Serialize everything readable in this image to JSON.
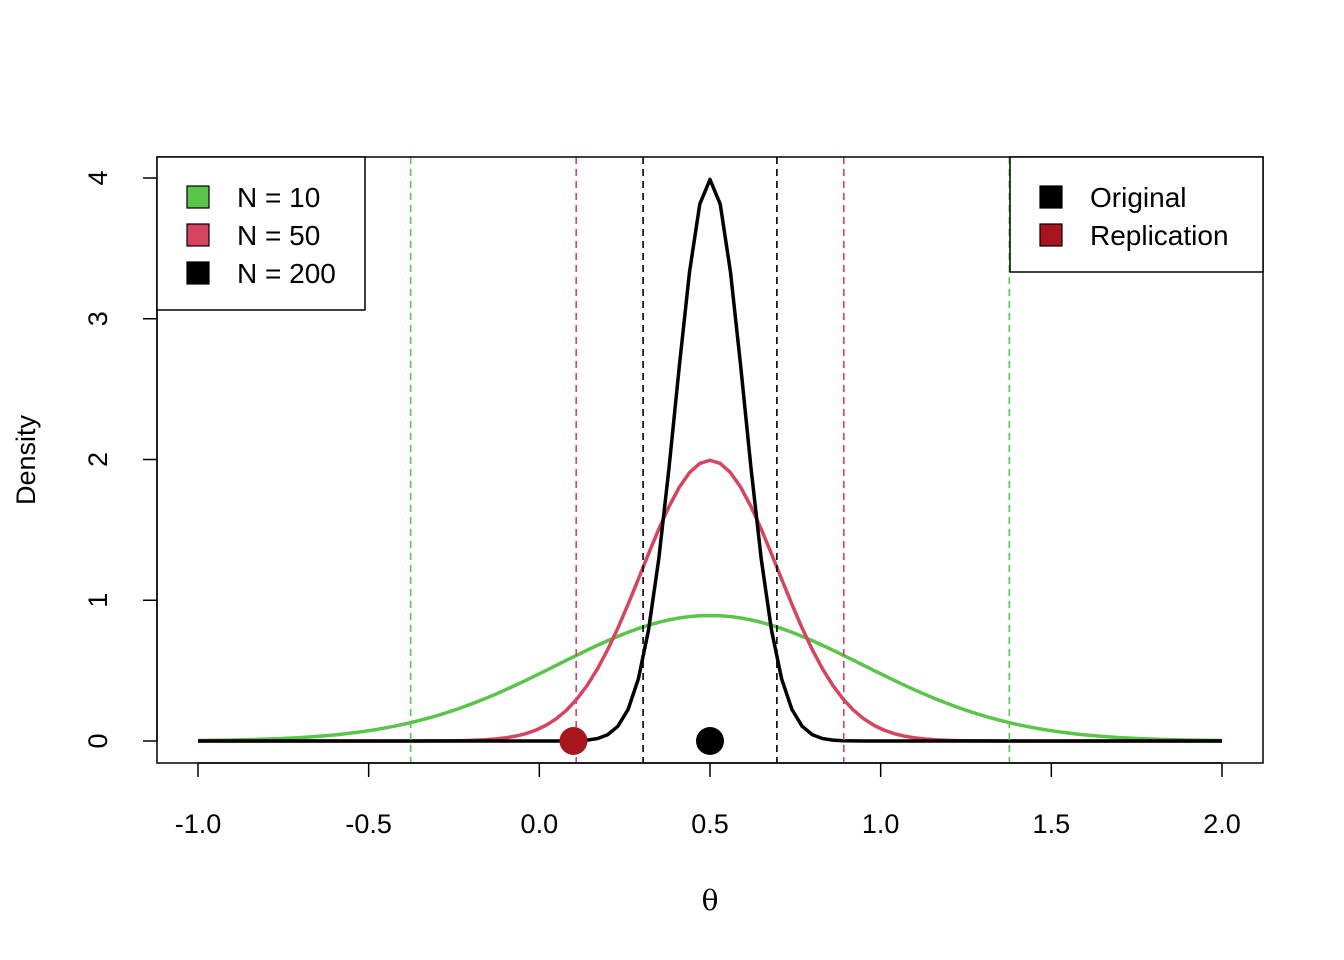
{
  "chart_data": {
    "type": "line",
    "xlabel": "θ",
    "ylabel": "Density",
    "xlim": [
      -1.0,
      2.0
    ],
    "ylim": [
      0,
      4
    ],
    "x_ticks": [
      "-1.0",
      "-0.5",
      "0.0",
      "0.5",
      "1.0",
      "1.5",
      "2.0"
    ],
    "y_ticks": [
      "0",
      "1",
      "2",
      "3",
      "4"
    ],
    "grid": false,
    "series": [
      {
        "name": "N = 10",
        "color": "#5BC44A",
        "distribution": "normal",
        "mean": 0.5,
        "sd": 0.4472,
        "interval": [
          -0.377,
          1.377
        ]
      },
      {
        "name": "N = 50",
        "color": "#D64560",
        "distribution": "normal",
        "mean": 0.5,
        "sd": 0.2,
        "interval": [
          0.108,
          0.892
        ]
      },
      {
        "name": "N = 200",
        "color": "#000000",
        "distribution": "normal",
        "mean": 0.5,
        "sd": 0.1,
        "interval": [
          0.304,
          0.696
        ]
      }
    ],
    "points": [
      {
        "name": "Original",
        "x": 0.5,
        "y": 0,
        "color": "#000000"
      },
      {
        "name": "Replication",
        "x": 0.1,
        "y": 0,
        "color": "#A8151F"
      }
    ],
    "legends": [
      {
        "placement": "top-left",
        "entries": [
          {
            "label": "N = 10",
            "color": "#5BC44A"
          },
          {
            "label": "N = 50",
            "color": "#D64560"
          },
          {
            "label": "N = 200",
            "color": "#000000"
          }
        ]
      },
      {
        "placement": "top-right",
        "entries": [
          {
            "label": "Original",
            "color": "#000000"
          },
          {
            "label": "Replication",
            "color": "#A8151F"
          }
        ]
      }
    ]
  }
}
